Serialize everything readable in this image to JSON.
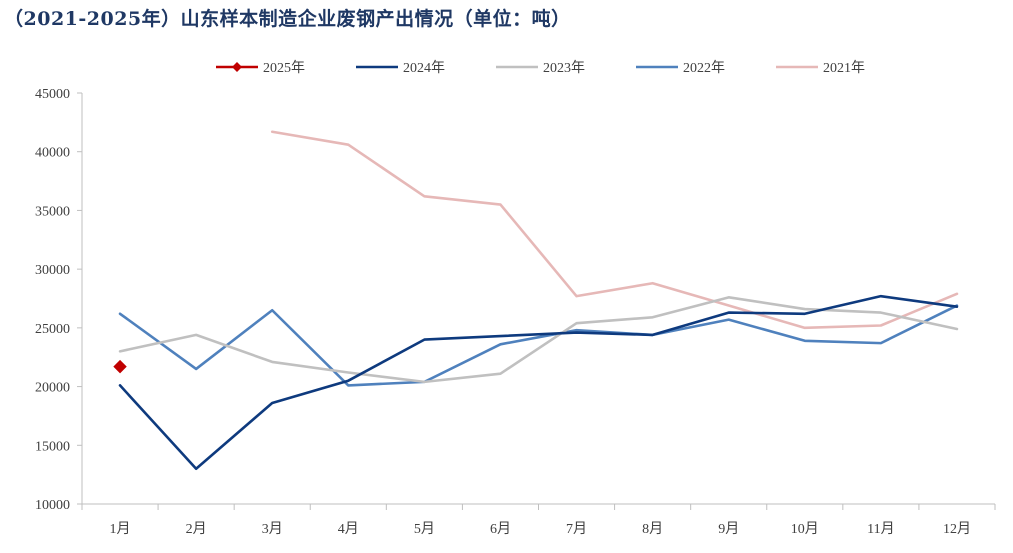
{
  "chart_data": {
    "type": "line",
    "title": "（2021-2025年）山东样本制造企业废钢产出情况（单位：吨）",
    "categories": [
      "1月",
      "2月",
      "3月",
      "4月",
      "5月",
      "6月",
      "7月",
      "8月",
      "9月",
      "10月",
      "11月",
      "12月"
    ],
    "ylim": [
      10000,
      45000
    ],
    "yticks": [
      10000,
      15000,
      20000,
      25000,
      30000,
      35000,
      40000,
      45000
    ],
    "grid": false,
    "legend_position": "top",
    "series": [
      {
        "name": "2025年",
        "color": "#c00000",
        "marker": "diamond",
        "values": [
          21700,
          null,
          null,
          null,
          null,
          null,
          null,
          null,
          null,
          null,
          null,
          null
        ]
      },
      {
        "name": "2024年",
        "color": "#0e3a7e",
        "values": [
          20100,
          13000,
          18600,
          20500,
          24000,
          24300,
          24600,
          24400,
          26300,
          26200,
          27700,
          26800
        ]
      },
      {
        "name": "2023年",
        "color": "#c0c0c0",
        "values": [
          23000,
          24400,
          22100,
          21200,
          20400,
          21100,
          25400,
          25900,
          27600,
          26600,
          26300,
          24900
        ]
      },
      {
        "name": "2022年",
        "color": "#4f81bd",
        "values": [
          26200,
          21500,
          26500,
          20100,
          20400,
          23600,
          24800,
          24400,
          25700,
          23900,
          23700,
          26900
        ]
      },
      {
        "name": "2021年",
        "color": "#e6b8b7",
        "values": [
          null,
          null,
          41700,
          40600,
          36200,
          35500,
          27700,
          28800,
          26900,
          25000,
          25200,
          27900
        ]
      }
    ]
  }
}
